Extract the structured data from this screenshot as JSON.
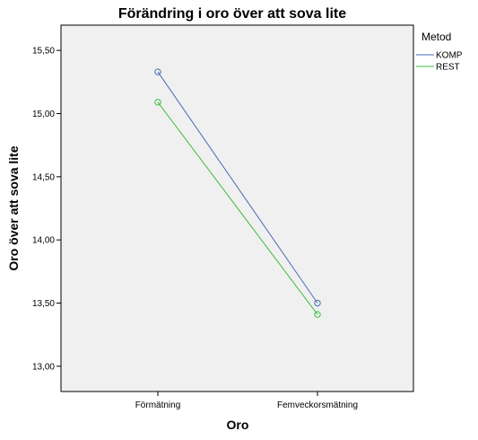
{
  "chart_data": {
    "type": "line",
    "title": "Förändring i oro över att sova lite",
    "xlabel": "Oro",
    "ylabel": "Oro över att sova lite",
    "categories": [
      "Förmätning",
      "Femveckorsmätning"
    ],
    "ylim": [
      12.8,
      15.7
    ],
    "yticks": [
      "13,00",
      "13,50",
      "14,00",
      "14,50",
      "15,00",
      "15,50"
    ],
    "ytick_values": [
      13.0,
      13.5,
      14.0,
      14.5,
      15.0,
      15.5
    ],
    "legend_title": "Metod",
    "legend_position": "right",
    "grid": false,
    "series": [
      {
        "name": "KOMP",
        "values": [
          15.33,
          13.5
        ],
        "color": "#4a6ab5"
      },
      {
        "name": "REST",
        "values": [
          15.09,
          13.41
        ],
        "color": "#3cbd3c"
      }
    ]
  }
}
